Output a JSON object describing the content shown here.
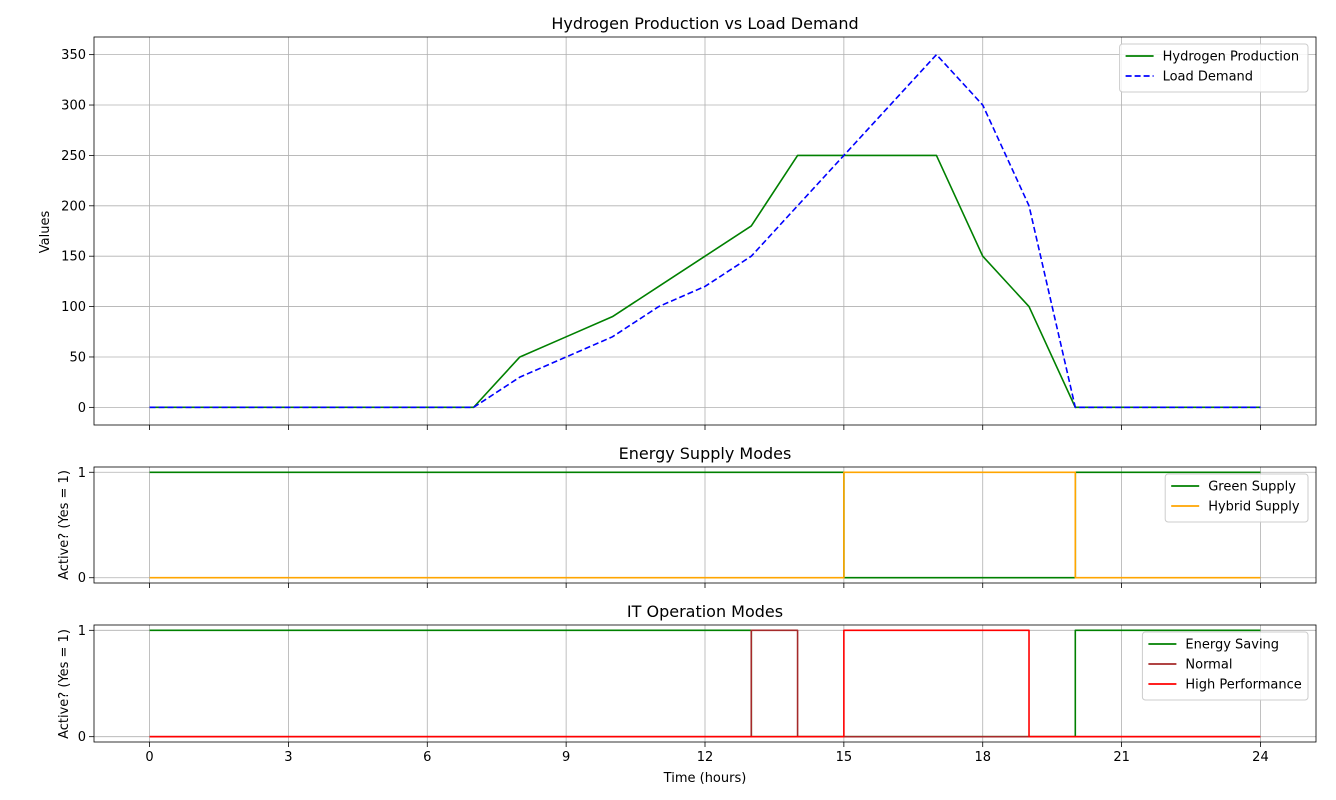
{
  "chart_data": [
    {
      "type": "line",
      "title": "Hydrogen Production vs Load Demand",
      "xlabel": "",
      "ylabel": "Values",
      "xlim": [
        -1.2,
        25.2
      ],
      "ylim": [
        -17.5,
        367.5
      ],
      "xticks": [
        0,
        3,
        6,
        9,
        12,
        15,
        18,
        21,
        24
      ],
      "yticks": [
        0,
        50,
        100,
        150,
        200,
        250,
        300,
        350
      ],
      "grid": true,
      "legend": "top-right",
      "series": [
        {
          "name": "Hydrogen Production",
          "color": "#008000",
          "style": "solid",
          "x": [
            0,
            1,
            2,
            3,
            4,
            5,
            6,
            7,
            8,
            9,
            10,
            11,
            12,
            13,
            14,
            15,
            16,
            17,
            18,
            19,
            20,
            21,
            22,
            23,
            24
          ],
          "y": [
            0,
            0,
            0,
            0,
            0,
            0,
            0,
            0,
            50,
            70,
            90,
            120,
            150,
            180,
            250,
            250,
            250,
            250,
            150,
            100,
            0,
            0,
            0,
            0,
            0
          ]
        },
        {
          "name": "Load Demand",
          "color": "#0000ff",
          "style": "dashed",
          "x": [
            0,
            1,
            2,
            3,
            4,
            5,
            6,
            7,
            8,
            9,
            10,
            11,
            12,
            13,
            14,
            15,
            16,
            17,
            18,
            19,
            20,
            21,
            22,
            23,
            24
          ],
          "y": [
            0,
            0,
            0,
            0,
            0,
            0,
            0,
            0,
            30,
            50,
            70,
            100,
            120,
            150,
            200,
            250,
            300,
            350,
            300,
            200,
            0,
            0,
            0,
            0,
            0
          ]
        }
      ]
    },
    {
      "type": "line",
      "title": "Energy Supply Modes",
      "xlabel": "",
      "ylabel": "Active? (Yes = 1)",
      "xlim": [
        -1.2,
        25.2
      ],
      "ylim": [
        -0.05,
        1.05
      ],
      "xticks": [
        0,
        3,
        6,
        9,
        12,
        15,
        18,
        21,
        24
      ],
      "yticks": [
        0,
        1
      ],
      "grid": true,
      "legend": "right",
      "series": [
        {
          "name": "Green Supply",
          "color": "#008000",
          "style": "step",
          "x": [
            0,
            15,
            15,
            20,
            20,
            24
          ],
          "y": [
            1,
            1,
            0,
            0,
            1,
            1
          ]
        },
        {
          "name": "Hybrid Supply",
          "color": "#ffa500",
          "style": "step",
          "x": [
            0,
            15,
            15,
            20,
            20,
            24
          ],
          "y": [
            0,
            0,
            1,
            1,
            0,
            0
          ]
        }
      ]
    },
    {
      "type": "line",
      "title": "IT Operation Modes",
      "xlabel": "Time (hours)",
      "ylabel": "Active? (Yes = 1)",
      "xlim": [
        -1.2,
        25.2
      ],
      "ylim": [
        -0.05,
        1.05
      ],
      "xticks": [
        0,
        3,
        6,
        9,
        12,
        15,
        18,
        21,
        24
      ],
      "yticks": [
        0,
        1
      ],
      "grid": true,
      "legend": "right",
      "series": [
        {
          "name": "Energy Saving",
          "color": "#008000",
          "style": "step",
          "x": [
            0,
            13,
            13,
            20,
            20,
            24
          ],
          "y": [
            1,
            1,
            0,
            0,
            1,
            1
          ]
        },
        {
          "name": "Normal",
          "color": "#a52a2a",
          "style": "step",
          "x": [
            0,
            13,
            13,
            14,
            14,
            19.25,
            19.25,
            24
          ],
          "y": [
            0,
            0,
            1,
            1,
            0,
            0,
            0,
            0
          ]
        },
        {
          "name": "High Performance",
          "color": "#ff0000",
          "style": "step",
          "x": [
            0,
            15,
            15,
            19,
            19,
            24
          ],
          "y": [
            0,
            0,
            1,
            1,
            0,
            0
          ]
        }
      ]
    }
  ]
}
